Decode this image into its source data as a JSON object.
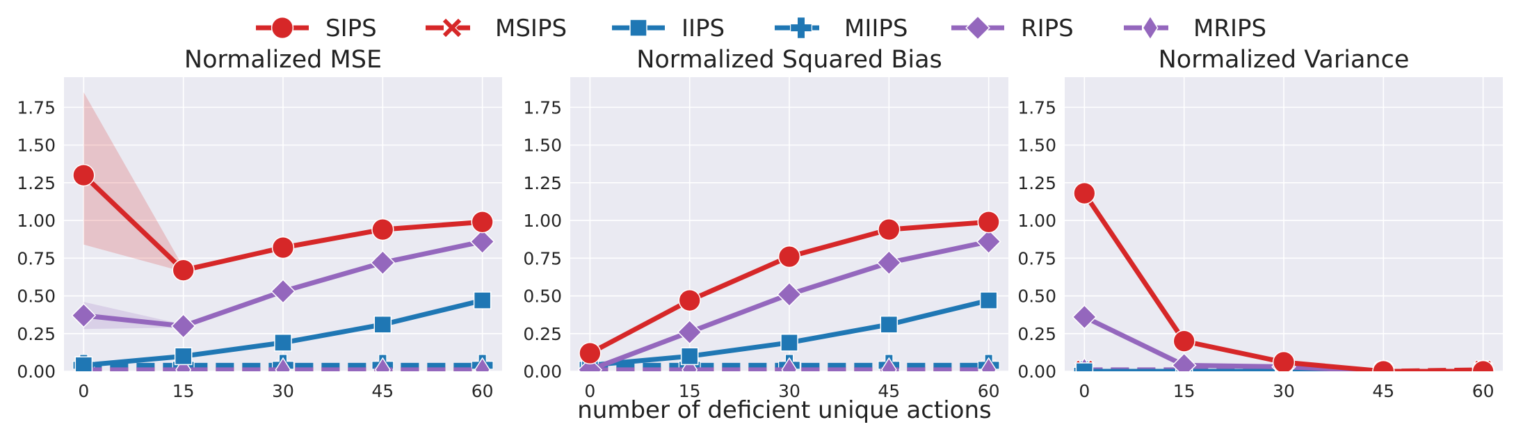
{
  "legend": {
    "position": "top-center",
    "items": [
      {
        "label": "SIPS",
        "color": "#d62728",
        "marker": "circle",
        "dashed": false
      },
      {
        "label": "MSIPS",
        "color": "#d62728",
        "marker": "x",
        "dashed": true
      },
      {
        "label": "IIPS",
        "color": "#1f77b4",
        "marker": "square",
        "dashed": false
      },
      {
        "label": "MIIPS",
        "color": "#1f77b4",
        "marker": "plus",
        "dashed": true
      },
      {
        "label": "RIPS",
        "color": "#9467bd",
        "marker": "diamond",
        "dashed": false
      },
      {
        "label": "MRIPS",
        "color": "#9467bd",
        "marker": "thin-diamond",
        "dashed": true
      }
    ]
  },
  "shared_xlabel": "number of deficient unique actions",
  "chart_data": [
    {
      "type": "line",
      "title": "Normalized MSE",
      "x": [
        0,
        15,
        30,
        45,
        60
      ],
      "xticks": [
        "0",
        "15",
        "30",
        "45",
        "60"
      ],
      "yticks": [
        "0.00",
        "0.25",
        "0.50",
        "0.75",
        "1.00",
        "1.25",
        "1.50",
        "1.75"
      ],
      "ylim": [
        0,
        1.95
      ],
      "grid": true,
      "series": [
        {
          "name": "SIPS",
          "values": [
            1.3,
            0.67,
            0.82,
            0.94,
            0.99
          ],
          "band_low": [
            0.84,
            0.66,
            0.81,
            0.93,
            0.98
          ],
          "band_high": [
            1.85,
            0.69,
            0.83,
            0.95,
            1.0
          ]
        },
        {
          "name": "MSIPS",
          "values": [
            0.01,
            0.01,
            0.01,
            0.01,
            0.01
          ]
        },
        {
          "name": "IIPS",
          "values": [
            0.04,
            0.1,
            0.19,
            0.31,
            0.47
          ]
        },
        {
          "name": "MIIPS",
          "values": [
            0.04,
            0.04,
            0.04,
            0.04,
            0.04
          ]
        },
        {
          "name": "RIPS",
          "values": [
            0.37,
            0.3,
            0.53,
            0.72,
            0.86
          ],
          "band_low": [
            0.28,
            0.29,
            0.52,
            0.71,
            0.85
          ],
          "band_high": [
            0.46,
            0.31,
            0.54,
            0.73,
            0.87
          ]
        },
        {
          "name": "MRIPS",
          "values": [
            0.01,
            0.01,
            0.01,
            0.01,
            0.01
          ]
        }
      ]
    },
    {
      "type": "line",
      "title": "Normalized Squared Bias",
      "x": [
        0,
        15,
        30,
        45,
        60
      ],
      "xticks": [
        "0",
        "15",
        "30",
        "45",
        "60"
      ],
      "yticks": [
        "0.00",
        "0.25",
        "0.50",
        "0.75",
        "1.00",
        "1.25",
        "1.50",
        "1.75"
      ],
      "ylim": [
        0,
        1.95
      ],
      "grid": true,
      "series": [
        {
          "name": "SIPS",
          "values": [
            0.12,
            0.47,
            0.76,
            0.94,
            0.99
          ]
        },
        {
          "name": "MSIPS",
          "values": [
            0.01,
            0.01,
            0.01,
            0.01,
            0.01
          ]
        },
        {
          "name": "IIPS",
          "values": [
            0.04,
            0.1,
            0.19,
            0.31,
            0.47
          ]
        },
        {
          "name": "MIIPS",
          "values": [
            0.04,
            0.04,
            0.04,
            0.04,
            0.04
          ]
        },
        {
          "name": "RIPS",
          "values": [
            0.01,
            0.26,
            0.51,
            0.72,
            0.86
          ]
        },
        {
          "name": "MRIPS",
          "values": [
            0.01,
            0.01,
            0.01,
            0.01,
            0.01
          ]
        }
      ]
    },
    {
      "type": "line",
      "title": "Normalized Variance",
      "x": [
        0,
        15,
        30,
        45,
        60
      ],
      "xticks": [
        "0",
        "15",
        "30",
        "45",
        "60"
      ],
      "yticks": [
        "0.00",
        "0.25",
        "0.50",
        "0.75",
        "1.00",
        "1.25",
        "1.50",
        "1.75"
      ],
      "ylim": [
        0,
        1.95
      ],
      "grid": true,
      "series": [
        {
          "name": "SIPS",
          "values": [
            1.18,
            0.2,
            0.06,
            0.0,
            0.0
          ]
        },
        {
          "name": "MSIPS",
          "values": [
            0.01,
            0.0,
            0.0,
            0.0,
            0.01
          ]
        },
        {
          "name": "IIPS",
          "values": [
            0.0,
            0.0,
            0.0,
            0.0,
            0.0
          ]
        },
        {
          "name": "MIIPS",
          "values": [
            0.0,
            0.0,
            0.0,
            0.0,
            0.0
          ]
        },
        {
          "name": "RIPS",
          "values": [
            0.36,
            0.04,
            0.03,
            0.0,
            0.0
          ]
        },
        {
          "name": "MRIPS",
          "values": [
            0.01,
            0.01,
            0.01,
            0.0,
            0.0
          ]
        }
      ]
    }
  ]
}
